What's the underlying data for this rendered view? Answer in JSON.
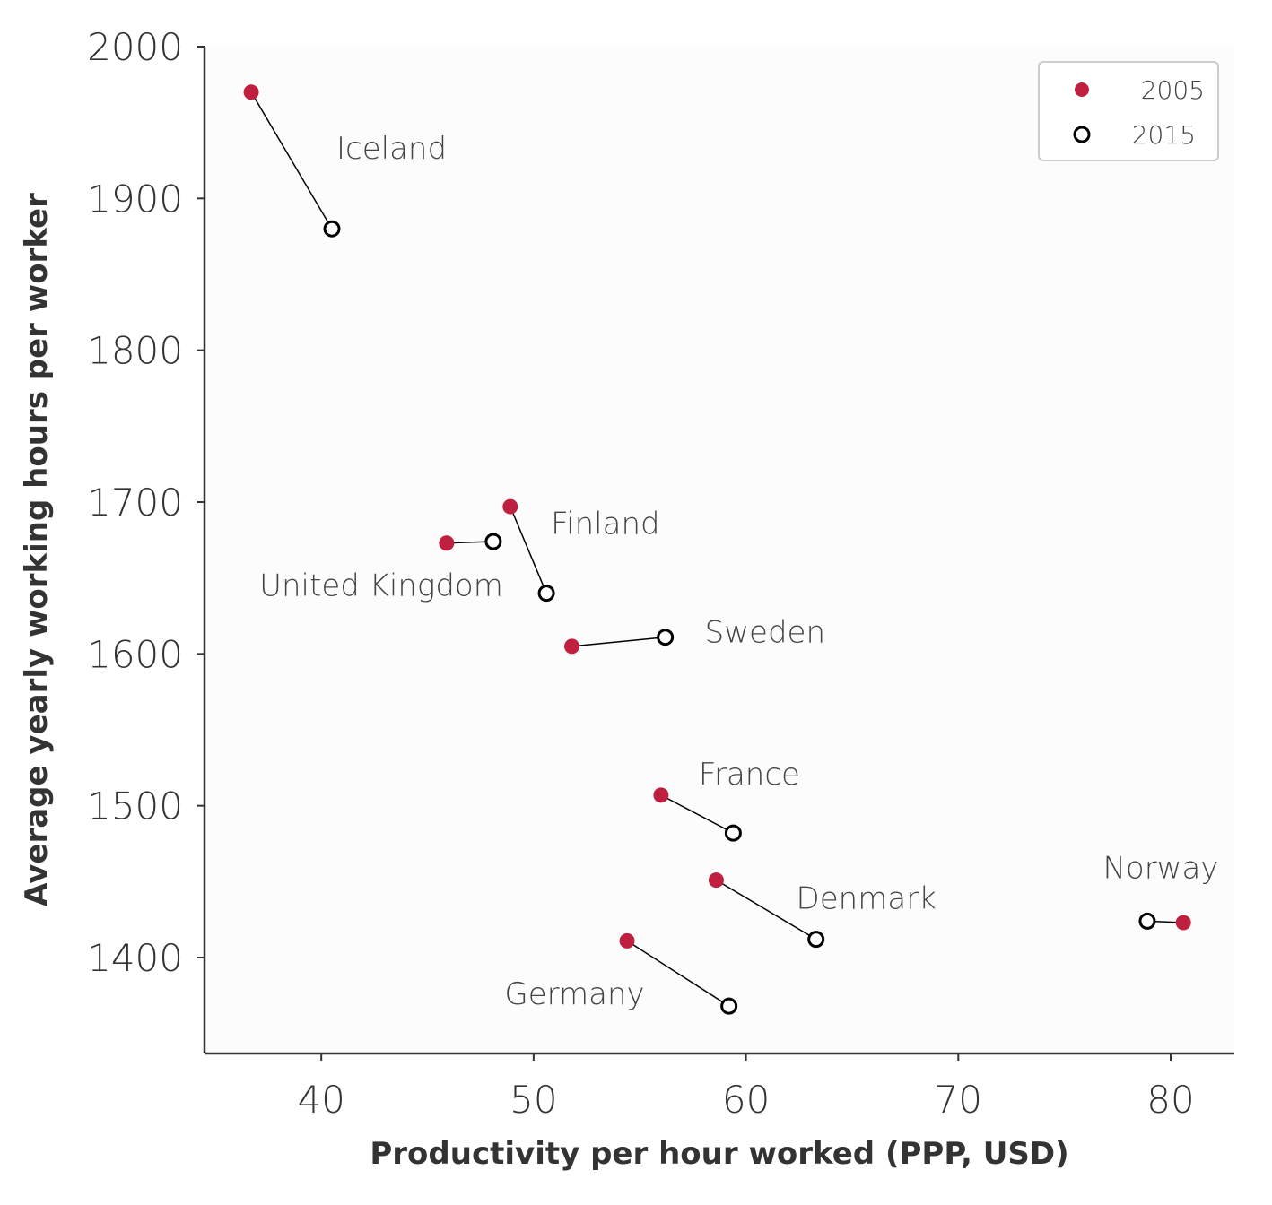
{
  "chart_data": {
    "type": "scatter",
    "xlabel": "Productivity per hour worked (PPP, USD)",
    "ylabel": "Average yearly working hours per worker",
    "xlim": [
      34.5,
      83
    ],
    "ylim": [
      1336,
      2000
    ],
    "xticks": [
      40,
      50,
      60,
      70,
      80
    ],
    "yticks": [
      1400,
      1500,
      1600,
      1700,
      1800,
      1900,
      2000
    ],
    "grid": false,
    "legend_position": "top-right",
    "colors": {
      "2005": "#c0203f",
      "2015": "#000000",
      "connector": "#000000",
      "axis": "#333333",
      "plot_bg": "#fcfcfc"
    },
    "series": [
      {
        "name": "2005",
        "marker": "filled-circle"
      },
      {
        "name": "2015",
        "marker": "open-circle"
      }
    ],
    "countries": [
      {
        "name": "Iceland",
        "p2005": [
          36.7,
          1970
        ],
        "p2015": [
          40.5,
          1880
        ]
      },
      {
        "name": "Finland",
        "p2005": [
          48.9,
          1697
        ],
        "p2015": [
          50.6,
          1640
        ]
      },
      {
        "name": "United Kingdom",
        "p2005": [
          45.9,
          1673
        ],
        "p2015": [
          48.1,
          1674
        ]
      },
      {
        "name": "Sweden",
        "p2005": [
          51.8,
          1605
        ],
        "p2015": [
          56.2,
          1611
        ]
      },
      {
        "name": "France",
        "p2005": [
          56.0,
          1507
        ],
        "p2015": [
          59.4,
          1482
        ]
      },
      {
        "name": "Norway",
        "p2005": [
          80.6,
          1423
        ],
        "p2015": [
          78.9,
          1424
        ]
      },
      {
        "name": "Denmark",
        "p2005": [
          58.6,
          1451
        ],
        "p2015": [
          63.3,
          1412
        ]
      },
      {
        "name": "Germany",
        "p2005": [
          54.4,
          1411
        ],
        "p2015": [
          59.2,
          1368
        ]
      }
    ]
  }
}
